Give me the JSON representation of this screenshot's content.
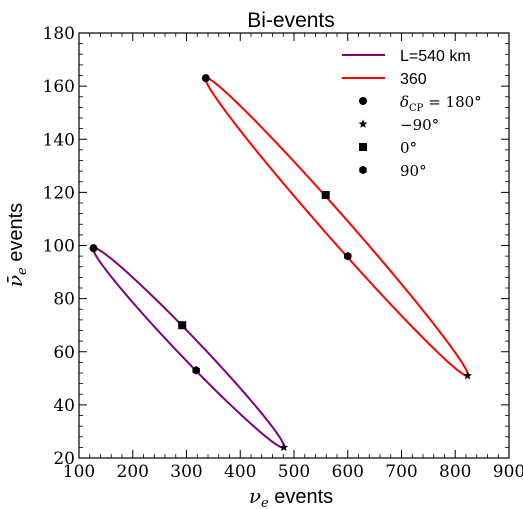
{
  "chart_data": {
    "type": "line",
    "title": "Bi-events",
    "xlabel_sym": "ν",
    "xlabel_sub": "e",
    "xlabel_rest": " events",
    "ylabel_sym": "ν̄",
    "ylabel_sub": "e",
    "ylabel_rest": " events",
    "xlim": [
      100,
      900
    ],
    "ylim": [
      20,
      180
    ],
    "xticks": [
      100,
      200,
      300,
      400,
      500,
      600,
      700,
      800,
      900
    ],
    "yticks": [
      20,
      40,
      60,
      80,
      100,
      120,
      140,
      160,
      180
    ],
    "legend_position": "top-right",
    "series": [
      {
        "name": "L=540 km",
        "color": "#800080",
        "kind": "ellipse",
        "points": {
          "delta_180": [
            127,
            99
          ],
          "delta_m90": [
            481,
            24
          ],
          "delta_0": [
            292,
            70
          ],
          "delta_90": [
            318,
            53
          ]
        }
      },
      {
        "name": "360",
        "color": "#ff0000",
        "kind": "ellipse",
        "points": {
          "delta_180": [
            336,
            163
          ],
          "delta_m90": [
            823,
            51
          ],
          "delta_0": [
            559,
            119
          ],
          "delta_90": [
            600,
            96
          ]
        }
      }
    ],
    "markers": [
      {
        "key": "delta_180",
        "shape": "circle",
        "label_pre": "δ",
        "label_sub": "CP",
        "label_post": " = 180°"
      },
      {
        "key": "delta_m90",
        "shape": "star",
        "label_pre": "−90°",
        "label_sub": "",
        "label_post": ""
      },
      {
        "key": "delta_0",
        "shape": "square",
        "label_pre": "0°",
        "label_sub": "",
        "label_post": ""
      },
      {
        "key": "delta_90",
        "shape": "hexagon",
        "label_pre": "90°",
        "label_sub": "",
        "label_post": ""
      }
    ]
  }
}
